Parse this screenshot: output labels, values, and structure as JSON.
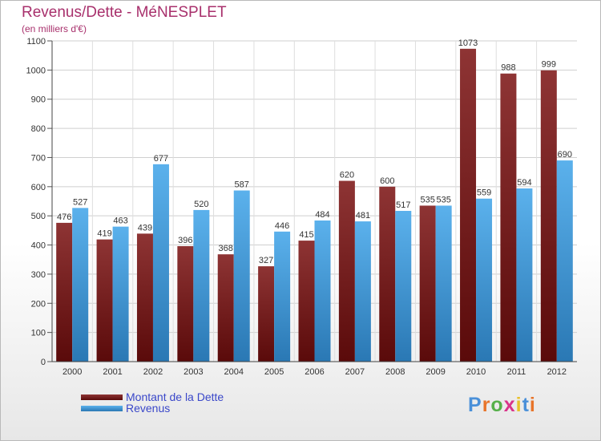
{
  "chart_data": {
    "type": "bar",
    "title": "Revenus/Dette - MéNESPLET",
    "subtitle": "(en milliers d'€)",
    "categories": [
      "2000",
      "2001",
      "2002",
      "2003",
      "2004",
      "2005",
      "2006",
      "2007",
      "2008",
      "2009",
      "2010",
      "2011",
      "2012"
    ],
    "series": [
      {
        "name": "Montant de la Dette",
        "values": [
          476,
          419,
          439,
          396,
          368,
          327,
          415,
          620,
          600,
          535,
          1073,
          988,
          999
        ],
        "color_dark": "#5a0a0a",
        "color_light": "#8e3434"
      },
      {
        "name": "Revenus",
        "values": [
          527,
          463,
          677,
          520,
          587,
          446,
          484,
          481,
          517,
          535,
          559,
          594,
          690
        ],
        "color_dark": "#2a78b4",
        "color_light": "#5bb1ec"
      }
    ],
    "ylim": [
      0,
      1100
    ],
    "yticks": [
      0,
      100,
      200,
      300,
      400,
      500,
      600,
      700,
      800,
      900,
      1000,
      1100
    ],
    "grid": true,
    "legend_position": "bottom-left"
  },
  "branding": {
    "letters": [
      "P",
      "r",
      "o",
      "x",
      "i",
      "t",
      "i"
    ],
    "colors": [
      "#4a90d9",
      "#e8742a",
      "#56b04a",
      "#d9348a",
      "#e8c12a",
      "#4a90d9",
      "#e8742a"
    ]
  }
}
